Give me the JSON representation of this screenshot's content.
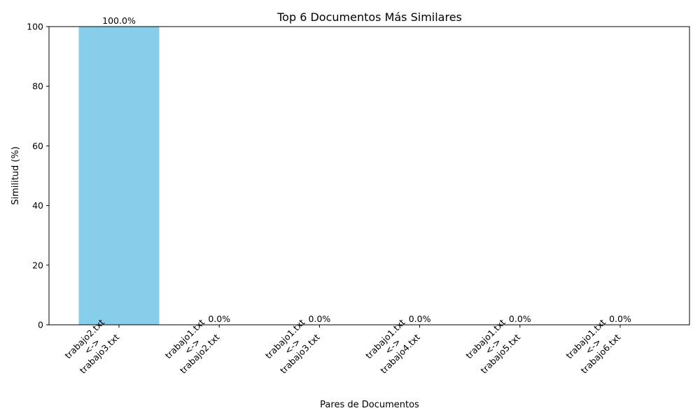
{
  "chart_data": {
    "type": "bar",
    "title": "Top 6 Documentos Más Similares",
    "xlabel": "Pares de Documentos",
    "ylabel": "Similitud (%)",
    "ylim": [
      0,
      100
    ],
    "yticks": [
      0,
      20,
      40,
      60,
      80,
      100
    ],
    "categories": [
      [
        "trabajo2.txt",
        "<->",
        "trabajo3.txt"
      ],
      [
        "trabajo1.txt",
        "<->",
        "trabajo2.txt"
      ],
      [
        "trabajo1.txt",
        "<->",
        "trabajo3.txt"
      ],
      [
        "trabajo1.txt",
        "<->",
        "trabajo4.txt"
      ],
      [
        "trabajo1.txt",
        "<->",
        "trabajo5.txt"
      ],
      [
        "trabajo1.txt",
        "<->",
        "trabajo6.txt"
      ]
    ],
    "values": [
      100.0,
      0.0,
      0.0,
      0.0,
      0.0,
      0.0
    ],
    "value_labels": [
      "100.0%",
      "0.0%",
      "0.0%",
      "0.0%",
      "0.0%",
      "0.0%"
    ],
    "bar_color": "#87CEEB",
    "grid": false,
    "legend": "none"
  }
}
